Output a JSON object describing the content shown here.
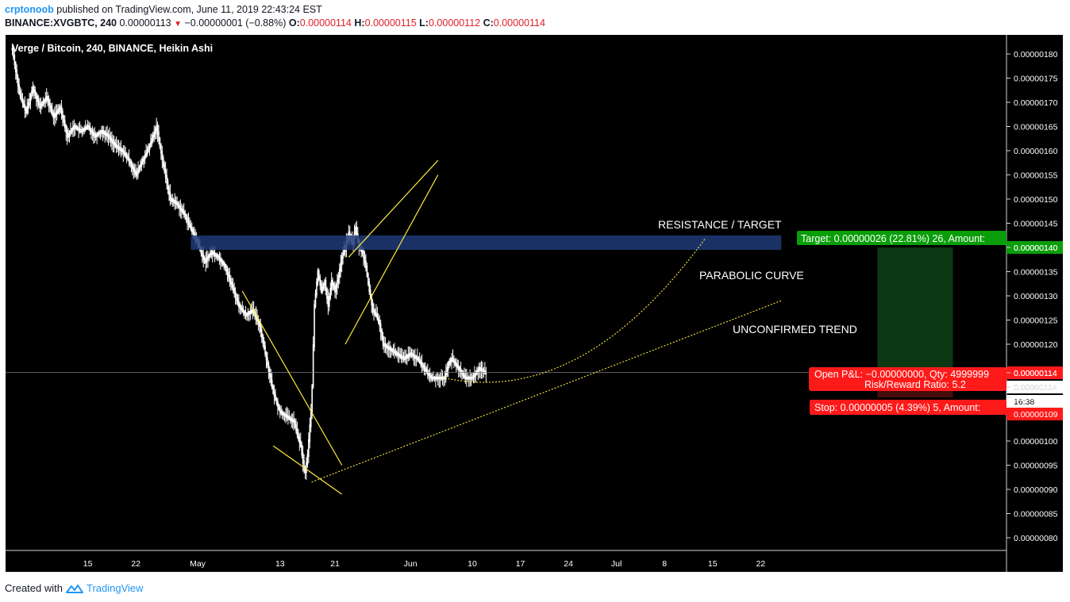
{
  "header": {
    "user": "crptonoob",
    "published": "published on TradingView.com, June 11, 2019 22:43:24 EST",
    "symbol": "BINANCE:XVGBTC, 240",
    "last": "0.00000113",
    "change": "−0.00000001 (−0.88%)",
    "open_label": "O:",
    "open": "0.00000114",
    "high_label": "H:",
    "high": "0.00000115",
    "low_label": "L:",
    "low": "0.00000112",
    "close_label": "C:",
    "close": "0.00000114"
  },
  "footer": {
    "created_with": "Created with",
    "brand": "TradingView"
  },
  "colors": {
    "background": "#000000",
    "candle": "#ffffff",
    "trendline": "#ffeb3b",
    "zone": "#1e3a78",
    "target": "#0a9e0a",
    "stop": "#ff1a1a",
    "brand": "#2196f3"
  },
  "chart_data": {
    "type": "candlestick",
    "title": "Verge / Bitcoin, 240, BINANCE, Heikin Ashi",
    "ylim": [
      7.7e-07,
      1.83e-06
    ],
    "y_ticks": [
      "0.00000180",
      "0.00000175",
      "0.00000170",
      "0.00000165",
      "0.00000160",
      "0.00000155",
      "0.00000150",
      "0.00000145",
      "0.00000140",
      "0.00000135",
      "0.00000130",
      "0.00000125",
      "0.00000120",
      "0.00000114",
      "0.00000114",
      "0.00000109",
      "0.00000100",
      "0.00000095",
      "0.00000090",
      "0.00000085",
      "0.00000080"
    ],
    "y_tick_values": [
      180,
      175,
      170,
      165,
      160,
      155,
      150,
      145,
      140,
      135,
      130,
      125,
      120,
      114,
      114,
      109,
      100,
      95,
      90,
      85,
      80
    ],
    "x_ticks": [
      "15",
      "22",
      "May",
      "13",
      "21",
      "Jun",
      "10",
      "17",
      "24",
      "Jul",
      "8",
      "15",
      "22"
    ],
    "x_tick_days": [
      -16,
      -9,
      0,
      12,
      20,
      31,
      40,
      47,
      54,
      61,
      68,
      75,
      82
    ],
    "price_path": [
      [
        -27,
        181
      ],
      [
        -26,
        172
      ],
      [
        -25,
        168
      ],
      [
        -24,
        173
      ],
      [
        -23,
        169
      ],
      [
        -22,
        171
      ],
      [
        -21,
        167
      ],
      [
        -20,
        169
      ],
      [
        -19,
        163
      ],
      [
        -18,
        165
      ],
      [
        -17,
        164
      ],
      [
        -16,
        165
      ],
      [
        -15,
        163
      ],
      [
        -14,
        164
      ],
      [
        -13,
        163
      ],
      [
        -12,
        161
      ],
      [
        -11,
        160
      ],
      [
        -10,
        158
      ],
      [
        -9,
        155
      ],
      [
        -8,
        158
      ],
      [
        -7,
        161
      ],
      [
        -6,
        165
      ],
      [
        -5,
        157
      ],
      [
        -4,
        150
      ],
      [
        -3,
        149
      ],
      [
        -2,
        147
      ],
      [
        -1,
        144
      ],
      [
        0,
        141
      ],
      [
        1,
        137
      ],
      [
        2,
        139
      ],
      [
        3,
        138
      ],
      [
        4,
        136
      ],
      [
        5,
        132
      ],
      [
        6,
        128
      ],
      [
        7,
        126
      ],
      [
        8,
        127
      ],
      [
        9,
        124
      ],
      [
        10,
        117
      ],
      [
        11,
        110
      ],
      [
        12,
        106
      ],
      [
        13,
        105
      ],
      [
        14,
        104
      ],
      [
        15,
        99
      ],
      [
        15.6,
        93
      ],
      [
        16,
        97
      ],
      [
        16.6,
        108
      ],
      [
        17,
        128
      ],
      [
        17.5,
        135
      ],
      [
        18,
        131
      ],
      [
        18.5,
        133
      ],
      [
        19,
        128
      ],
      [
        19.5,
        133
      ],
      [
        20,
        131
      ],
      [
        20.5,
        134
      ],
      [
        21,
        138
      ],
      [
        21.5,
        140
      ],
      [
        22,
        143
      ],
      [
        22.5,
        141
      ],
      [
        23,
        144
      ],
      [
        23.5,
        140
      ],
      [
        24,
        139
      ],
      [
        24.5,
        136
      ],
      [
        25,
        131
      ],
      [
        25.5,
        127
      ],
      [
        26,
        126
      ],
      [
        26.5,
        124
      ],
      [
        27,
        120
      ],
      [
        28,
        119
      ],
      [
        29,
        118
      ],
      [
        30,
        117
      ],
      [
        31,
        118
      ],
      [
        32,
        117
      ],
      [
        33,
        115
      ],
      [
        34,
        113
      ],
      [
        35,
        113
      ],
      [
        36,
        113
      ],
      [
        36.5,
        116
      ],
      [
        37,
        117
      ],
      [
        37.5,
        116
      ],
      [
        38,
        115
      ],
      [
        38.5,
        114
      ],
      [
        39,
        113
      ],
      [
        40,
        113
      ],
      [
        41,
        115
      ],
      [
        42,
        114
      ]
    ],
    "annotations": {
      "resistance": "RESISTANCE / TARGET",
      "parabolic": "PARABOLIC CURVE",
      "trend": "UNCONFIRMED TREND"
    },
    "position": {
      "entry": 114,
      "target_price": 140,
      "stop_price": 109,
      "target_label": "Target: 0.00000026 (22.81%) 26, Amount:",
      "pnl_label": "Open P&L: −0.00000000, Qty: 4999999",
      "rr_label": "Risk/Reward Ratio: 5.2",
      "stop_label": "Stop: 0.00000005 (4.39%) 5, Amount:",
      "last_price": "0.00000114",
      "countdown": "16:38"
    }
  }
}
